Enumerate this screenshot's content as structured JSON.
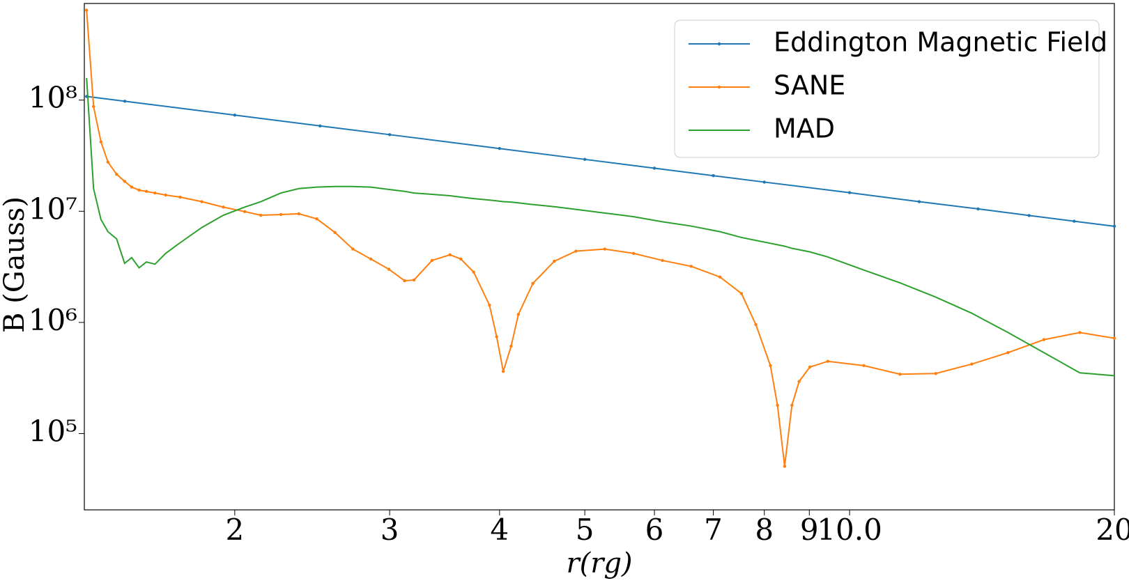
{
  "chart_data": {
    "type": "line",
    "xlabel": "r(rg)",
    "ylabel": "B (Gauss)",
    "xscale": "log",
    "yscale": "log",
    "xlim": [
      1.349,
      20
    ],
    "ylim": [
      20600,
      740000000
    ],
    "xticks": [
      2,
      3,
      4,
      5,
      6,
      7,
      8,
      9,
      {
        "value": 10,
        "label": "10.0"
      },
      20
    ],
    "yticks": [
      {
        "value": 100000,
        "label": "10⁵"
      },
      {
        "value": 1000000,
        "label": "10⁶"
      },
      {
        "value": 10000000,
        "label": "10⁷"
      },
      {
        "value": 100000000,
        "label": "10⁸"
      }
    ],
    "legend": "upper right",
    "series": [
      {
        "name": "Eddington Magnetic Field",
        "color": "#1f77b4",
        "markers": true,
        "x": [
          1.357,
          1.5,
          2,
          2.5,
          3,
          4,
          5,
          6,
          7,
          8,
          10,
          12,
          14,
          16,
          18,
          20
        ],
        "values": [
          108000000,
          97700000,
          73300000,
          58600000,
          48900000,
          36700000,
          29300000,
          24400000,
          20900000,
          18300000,
          14700000,
          12200000,
          10500000,
          9160000,
          8140000,
          7330000
        ]
      },
      {
        "name": "SANE",
        "color": "#ff7f0e",
        "markers": true,
        "x": [
          1.357,
          1.382,
          1.409,
          1.435,
          1.468,
          1.499,
          1.527,
          1.557,
          1.587,
          1.623,
          1.669,
          1.734,
          1.835,
          1.941,
          2.053,
          2.141,
          2.257,
          2.365,
          2.479,
          2.6,
          2.725,
          2.856,
          2.994,
          3.12,
          3.198,
          3.352,
          3.514,
          3.614,
          3.738,
          3.896,
          3.97,
          4.039,
          4.123,
          4.202,
          4.364,
          4.616,
          4.886,
          5.269,
          5.681,
          6.126,
          6.605,
          7.123,
          7.536,
          7.824,
          8.128,
          8.28,
          8.437,
          8.599,
          8.762,
          9.013,
          9.447,
          10.38,
          11.41,
          12.53,
          13.77,
          15.14,
          16.63,
          18.27,
          20
        ],
        "values": [
          644000000,
          87500000,
          42200000,
          27700000,
          21500000,
          18600000,
          16500000,
          15500000,
          15100000,
          14600000,
          14000000,
          13400000,
          12200000,
          10900000,
          9930000,
          9210000,
          9350000,
          9490000,
          8550000,
          6440000,
          4570000,
          3720000,
          3010000,
          2370000,
          2410000,
          3610000,
          4060000,
          3720000,
          2840000,
          1430000,
          743000,
          363000,
          611000,
          1180000,
          2240000,
          3550000,
          4380000,
          4570000,
          4180000,
          3610000,
          3200000,
          2560000,
          1820000,
          957000,
          409000,
          180000,
          50800,
          180000,
          294000,
          397000,
          447000,
          409000,
          342000,
          347000,
          422000,
          535000,
          700000,
          811000,
          721000
        ]
      },
      {
        "name": "MAD",
        "color": "#2ca02c",
        "markers": false,
        "x": [
          1.357,
          1.382,
          1.409,
          1.435,
          1.468,
          1.499,
          1.527,
          1.557,
          1.587,
          1.623,
          1.669,
          1.734,
          1.835,
          1.941,
          2.053,
          2.141,
          2.257,
          2.365,
          2.479,
          2.6,
          2.725,
          2.856,
          2.994,
          3.12,
          3.198,
          3.352,
          3.514,
          3.614,
          3.738,
          3.896,
          3.97,
          4.039,
          4.123,
          4.202,
          4.364,
          4.616,
          4.886,
          5.269,
          5.681,
          6.126,
          6.605,
          7.123,
          7.536,
          7.824,
          8.128,
          8.28,
          8.437,
          8.599,
          8.762,
          9.013,
          9.447,
          10.38,
          11.41,
          12.53,
          13.77,
          15.14,
          16.63,
          18.27,
          20
        ],
        "values": [
          158000000,
          16000000,
          8430000,
          6550000,
          5640000,
          3400000,
          3830000,
          3100000,
          3500000,
          3340000,
          4180000,
          5220000,
          7150000,
          9210000,
          10900000,
          12200000,
          14600000,
          16000000,
          16500000,
          16700000,
          16700000,
          16500000,
          15700000,
          15100000,
          14600000,
          14200000,
          13800000,
          13400000,
          13000000,
          12600000,
          12400000,
          12200000,
          12100000,
          11900000,
          11500000,
          11000000,
          10400000,
          9640000,
          8940000,
          8050000,
          7360000,
          6550000,
          5810000,
          5470000,
          5150000,
          5000000,
          4850000,
          4640000,
          4510000,
          4310000,
          3880000,
          2960000,
          2270000,
          1690000,
          1210000,
          811000,
          535000,
          352000,
          332000
        ]
      }
    ]
  }
}
